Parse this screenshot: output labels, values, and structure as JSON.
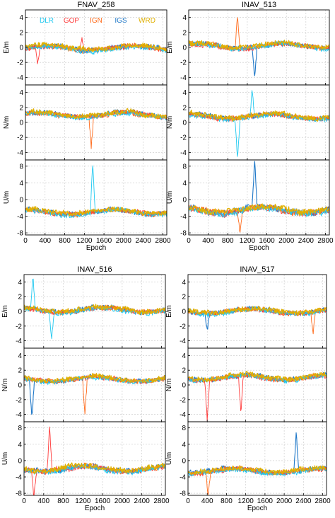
{
  "figure": {
    "legend": [
      {
        "label": "DLR",
        "color": "#1ec8f0"
      },
      {
        "label": "GOP",
        "color": "#ff3b3b"
      },
      {
        "label": "IGN",
        "color": "#ff6a1a"
      },
      {
        "label": "IGS",
        "color": "#1f78c8"
      },
      {
        "label": "WRD",
        "color": "#e0b000"
      }
    ],
    "xlabel": "Epoch",
    "xticks": [
      0,
      400,
      800,
      1200,
      1600,
      2000,
      2400,
      2800
    ]
  },
  "chart_data": [
    {
      "type": "line",
      "title": "FNAV_258",
      "series_names": [
        "DLR",
        "GOP",
        "IGN",
        "IGS",
        "WRD"
      ],
      "xlabel": "Epoch",
      "xlim": [
        0,
        2880
      ],
      "subplots": [
        {
          "ylabel": "E/m",
          "ylim": [
            -5,
            5
          ],
          "yticks": [
            -4,
            -2,
            0,
            2,
            4
          ],
          "approx_mean": -0.1,
          "noise_sd": 0.4,
          "outliers": [
            {
              "x": 250,
              "y": -2.5
            },
            {
              "x": 1150,
              "y": 1.5
            }
          ]
        },
        {
          "ylabel": "N/m",
          "ylim": [
            -5,
            5
          ],
          "yticks": [
            -4,
            -2,
            0,
            2,
            4
          ],
          "approx_mean": 1.0,
          "noise_sd": 0.4,
          "outliers": [
            {
              "x": 1340,
              "y": -3.0
            }
          ]
        },
        {
          "ylabel": "U/m",
          "ylim": [
            -8.5,
            9.5
          ],
          "yticks": [
            -8,
            -4,
            0,
            4,
            8
          ],
          "approx_mean": -3.0,
          "noise_sd": 0.7,
          "outliers": [
            {
              "x": 1370,
              "y": 9.0
            }
          ]
        }
      ]
    },
    {
      "type": "line",
      "title": "INAV_513",
      "series_names": [
        "DLR",
        "GOP",
        "IGN",
        "IGS",
        "WRD"
      ],
      "xlabel": "Epoch",
      "xlim": [
        0,
        2880
      ],
      "subplots": [
        {
          "ylabel": "E/m",
          "ylim": [
            -5,
            5
          ],
          "yticks": [
            -4,
            -2,
            0,
            2,
            4
          ],
          "approx_mean": 0.2,
          "noise_sd": 0.4,
          "outliers": [
            {
              "x": 1000,
              "y": 4.8
            },
            {
              "x": 1350,
              "y": -4.0
            }
          ]
        },
        {
          "ylabel": "N/m",
          "ylim": [
            -5,
            5
          ],
          "yticks": [
            -4,
            -2,
            0,
            2,
            4
          ],
          "approx_mean": 0.8,
          "noise_sd": 0.4,
          "outliers": [
            {
              "x": 1000,
              "y": -4.8
            },
            {
              "x": 1300,
              "y": 4.5
            }
          ]
        },
        {
          "ylabel": "U/m",
          "ylim": [
            -8.5,
            9.5
          ],
          "yticks": [
            -8,
            -4,
            0,
            4,
            8
          ],
          "approx_mean": -2.5,
          "noise_sd": 0.9,
          "outliers": [
            {
              "x": 1350,
              "y": 9.0
            },
            {
              "x": 1050,
              "y": -8.5
            }
          ]
        }
      ]
    },
    {
      "type": "line",
      "title": "INAV_516",
      "series_names": [
        "DLR",
        "GOP",
        "IGN",
        "IGS",
        "WRD"
      ],
      "xlabel": "Epoch",
      "xlim": [
        0,
        2880
      ],
      "subplots": [
        {
          "ylabel": "E/m",
          "ylim": [
            -5,
            5
          ],
          "yticks": [
            -4,
            -2,
            0,
            2,
            4
          ],
          "approx_mean": 0.2,
          "noise_sd": 0.4,
          "outliers": [
            {
              "x": 180,
              "y": 4.8
            },
            {
              "x": 560,
              "y": -3.5
            }
          ]
        },
        {
          "ylabel": "N/m",
          "ylim": [
            -5,
            5
          ],
          "yticks": [
            -4,
            -2,
            0,
            2,
            4
          ],
          "approx_mean": 0.8,
          "noise_sd": 0.4,
          "outliers": [
            {
              "x": 160,
              "y": -4.8
            },
            {
              "x": 1240,
              "y": -4.5
            }
          ]
        },
        {
          "ylabel": "U/m",
          "ylim": [
            -8.5,
            9.5
          ],
          "yticks": [
            -8,
            -4,
            0,
            4,
            8
          ],
          "approx_mean": -2.0,
          "noise_sd": 0.8,
          "outliers": [
            {
              "x": 200,
              "y": -8.5
            },
            {
              "x": 520,
              "y": 9.0
            }
          ]
        }
      ]
    },
    {
      "type": "line",
      "title": "INAV_517",
      "series_names": [
        "DLR",
        "GOP",
        "IGN",
        "IGS",
        "WRD"
      ],
      "xlabel": "Epoch",
      "xlim": [
        0,
        2880
      ],
      "subplots": [
        {
          "ylabel": "E/m",
          "ylim": [
            -5,
            5
          ],
          "yticks": [
            -4,
            -2,
            0,
            2,
            4
          ],
          "approx_mean": 0.0,
          "noise_sd": 0.4,
          "outliers": [
            {
              "x": 400,
              "y": -2.5
            },
            {
              "x": 2600,
              "y": -3.0
            }
          ]
        },
        {
          "ylabel": "N/m",
          "ylim": [
            -5,
            5
          ],
          "yticks": [
            -4,
            -2,
            0,
            2,
            4
          ],
          "approx_mean": 1.0,
          "noise_sd": 0.4,
          "outliers": [
            {
              "x": 400,
              "y": -4.5
            },
            {
              "x": 1100,
              "y": -4.0
            }
          ]
        },
        {
          "ylabel": "U/m",
          "ylim": [
            -8.5,
            9.5
          ],
          "yticks": [
            -8,
            -4,
            0,
            4,
            8
          ],
          "approx_mean": -2.5,
          "noise_sd": 0.7,
          "outliers": [
            {
              "x": 420,
              "y": -8.5
            },
            {
              "x": 2250,
              "y": 7.0
            }
          ]
        }
      ]
    }
  ]
}
